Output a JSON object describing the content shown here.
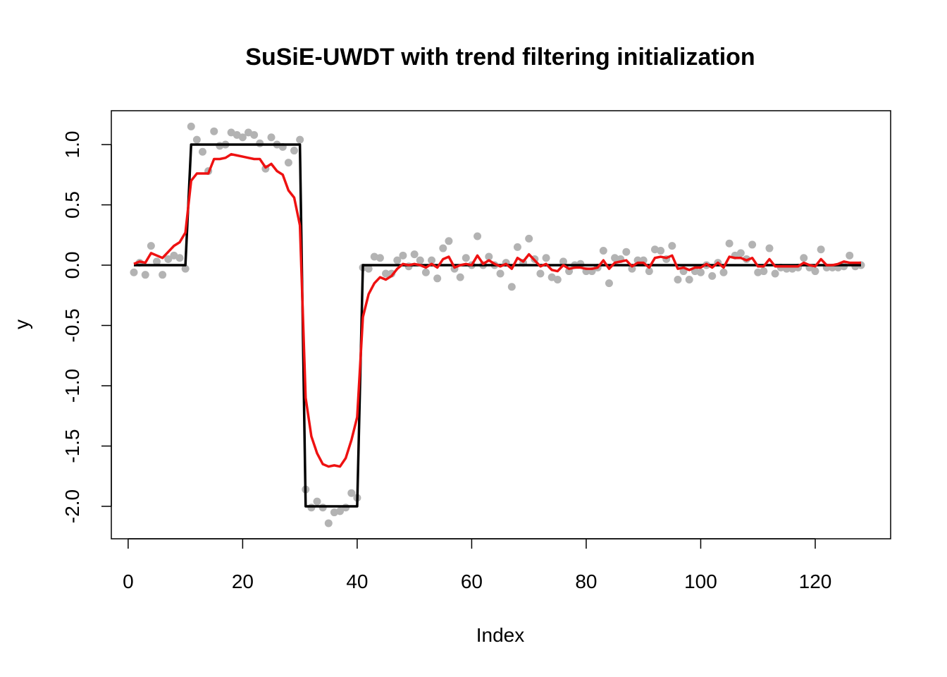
{
  "chart_data": {
    "type": "line",
    "title": "SuSiE-UWDT with trend filtering initialization",
    "xlabel": "Index",
    "ylabel": "y",
    "xlim": [
      1,
      128
    ],
    "ylim": [
      -2.2,
      1.2
    ],
    "x_ticks": [
      0,
      20,
      40,
      60,
      80,
      100,
      120
    ],
    "x_tick_labels": [
      "0",
      "20",
      "40",
      "60",
      "80",
      "100",
      "120"
    ],
    "y_ticks": [
      -2.0,
      -1.5,
      -1.0,
      -0.5,
      0.0,
      0.5,
      1.0
    ],
    "y_tick_labels": [
      "-2.0",
      "-1.5",
      "-1.0",
      "-0.5",
      "0.0",
      "0.5",
      "1.0"
    ],
    "grid": false,
    "legend": "none",
    "colors": {
      "points": "#b3b3b3",
      "truth": "#000000",
      "fit": "#ee1111"
    },
    "series": [
      {
        "kind": "scatter",
        "color": "#b3b3b3",
        "x": [
          1,
          2,
          3,
          4,
          5,
          6,
          7,
          8,
          9,
          10,
          11,
          12,
          13,
          14,
          15,
          16,
          17,
          18,
          19,
          20,
          21,
          22,
          23,
          24,
          25,
          26,
          27,
          28,
          29,
          30,
          31,
          32,
          33,
          34,
          35,
          36,
          37,
          38,
          39,
          40,
          41,
          42,
          43,
          44,
          45,
          46,
          47,
          48,
          49,
          50,
          51,
          52,
          53,
          54,
          55,
          56,
          57,
          58,
          59,
          60,
          61,
          62,
          63,
          64,
          65,
          66,
          67,
          68,
          69,
          70,
          71,
          72,
          73,
          74,
          75,
          76,
          77,
          78,
          79,
          80,
          81,
          82,
          83,
          84,
          85,
          86,
          87,
          88,
          89,
          90,
          91,
          92,
          93,
          94,
          95,
          96,
          97,
          98,
          99,
          100,
          101,
          102,
          103,
          104,
          105,
          106,
          107,
          108,
          109,
          110,
          111,
          112,
          113,
          114,
          115,
          116,
          117,
          118,
          119,
          120,
          121,
          122,
          123,
          124,
          125,
          126,
          127,
          128
        ],
        "y": [
          -0.06,
          0.02,
          -0.08,
          0.16,
          0.03,
          -0.08,
          0.05,
          0.08,
          0.06,
          -0.03,
          1.15,
          1.04,
          0.94,
          0.78,
          1.11,
          0.99,
          1.0,
          1.1,
          1.08,
          1.06,
          1.1,
          1.08,
          1.01,
          0.8,
          1.06,
          1.0,
          0.98,
          0.85,
          0.95,
          1.04,
          -1.86,
          -2.01,
          -1.96,
          -2.01,
          -2.14,
          -2.05,
          -2.04,
          -2.01,
          -1.89,
          -1.93,
          -0.02,
          -0.03,
          0.07,
          0.06,
          -0.07,
          -0.07,
          0.04,
          0.08,
          -0.01,
          0.09,
          0.04,
          -0.06,
          0.04,
          -0.11,
          0.14,
          0.2,
          -0.03,
          -0.1,
          0.06,
          0.0,
          0.24,
          0.0,
          0.07,
          0.0,
          -0.07,
          0.02,
          -0.18,
          0.15,
          0.02,
          0.22,
          0.05,
          -0.07,
          0.06,
          -0.1,
          -0.12,
          0.03,
          -0.05,
          0.0,
          0.01,
          -0.05,
          -0.05,
          -0.02,
          0.12,
          -0.15,
          0.06,
          0.05,
          0.11,
          -0.03,
          0.04,
          0.04,
          -0.05,
          0.13,
          0.12,
          0.05,
          0.16,
          -0.12,
          -0.05,
          -0.12,
          -0.05,
          -0.06,
          0.0,
          -0.09,
          0.02,
          -0.06,
          0.18,
          0.08,
          0.1,
          0.05,
          0.17,
          -0.06,
          -0.05,
          0.14,
          -0.07,
          -0.02,
          -0.03,
          -0.03,
          -0.02,
          0.06,
          -0.02,
          -0.05,
          0.13,
          -0.02,
          -0.02,
          -0.02,
          -0.01,
          0.08,
          -0.01,
          0.0
        ]
      },
      {
        "kind": "line",
        "color": "#000000",
        "x": [
          1,
          10,
          11,
          30,
          31,
          40,
          41,
          128
        ],
        "y": [
          0,
          0,
          1,
          1,
          -2,
          -2,
          0,
          0
        ]
      },
      {
        "kind": "line",
        "color": "#ee1111",
        "x": [
          1,
          2,
          3,
          4,
          5,
          6,
          7,
          8,
          9,
          10,
          11,
          12,
          13,
          14,
          15,
          16,
          17,
          18,
          19,
          20,
          21,
          22,
          23,
          24,
          25,
          26,
          27,
          28,
          29,
          30,
          31,
          32,
          33,
          34,
          35,
          36,
          37,
          38,
          39,
          40,
          41,
          42,
          43,
          44,
          45,
          46,
          47,
          48,
          49,
          50,
          51,
          52,
          53,
          54,
          55,
          56,
          57,
          58,
          59,
          60,
          61,
          62,
          63,
          64,
          65,
          66,
          67,
          68,
          69,
          70,
          71,
          72,
          73,
          74,
          75,
          76,
          77,
          78,
          79,
          80,
          81,
          82,
          83,
          84,
          85,
          86,
          87,
          88,
          89,
          90,
          91,
          92,
          93,
          94,
          95,
          96,
          97,
          98,
          99,
          100,
          101,
          102,
          103,
          104,
          105,
          106,
          107,
          108,
          109,
          110,
          111,
          112,
          113,
          114,
          115,
          116,
          117,
          118,
          119,
          120,
          121,
          122,
          123,
          124,
          125,
          126,
          127,
          128
        ],
        "y": [
          0.01,
          0.03,
          0.02,
          0.1,
          0.08,
          0.06,
          0.11,
          0.16,
          0.19,
          0.27,
          0.7,
          0.76,
          0.76,
          0.76,
          0.88,
          0.88,
          0.89,
          0.92,
          0.91,
          0.9,
          0.89,
          0.88,
          0.88,
          0.81,
          0.84,
          0.78,
          0.75,
          0.62,
          0.56,
          0.33,
          -1.1,
          -1.42,
          -1.56,
          -1.65,
          -1.67,
          -1.66,
          -1.67,
          -1.6,
          -1.45,
          -1.26,
          -0.43,
          -0.24,
          -0.15,
          -0.1,
          -0.12,
          -0.09,
          -0.03,
          0.01,
          0.0,
          0.01,
          0.0,
          -0.02,
          0.01,
          -0.02,
          0.05,
          0.07,
          -0.02,
          0.0,
          0.01,
          0.0,
          0.08,
          0.01,
          0.04,
          0.01,
          -0.01,
          0.01,
          -0.03,
          0.06,
          0.03,
          0.09,
          0.04,
          -0.01,
          0.01,
          -0.04,
          -0.05,
          0.0,
          -0.03,
          -0.02,
          -0.02,
          -0.03,
          -0.03,
          -0.02,
          0.04,
          -0.03,
          0.02,
          0.03,
          0.04,
          -0.01,
          0.02,
          0.02,
          -0.02,
          0.06,
          0.07,
          0.06,
          0.08,
          -0.03,
          -0.02,
          -0.04,
          -0.02,
          -0.02,
          0.01,
          -0.02,
          0.02,
          -0.02,
          0.07,
          0.06,
          0.06,
          0.04,
          0.06,
          -0.01,
          -0.01,
          0.05,
          -0.01,
          -0.01,
          -0.01,
          -0.01,
          -0.01,
          0.02,
          0.0,
          -0.01,
          0.05,
          0.0,
          0.0,
          0.01,
          0.03,
          0.02,
          0.02,
          0.02
        ]
      }
    ]
  }
}
